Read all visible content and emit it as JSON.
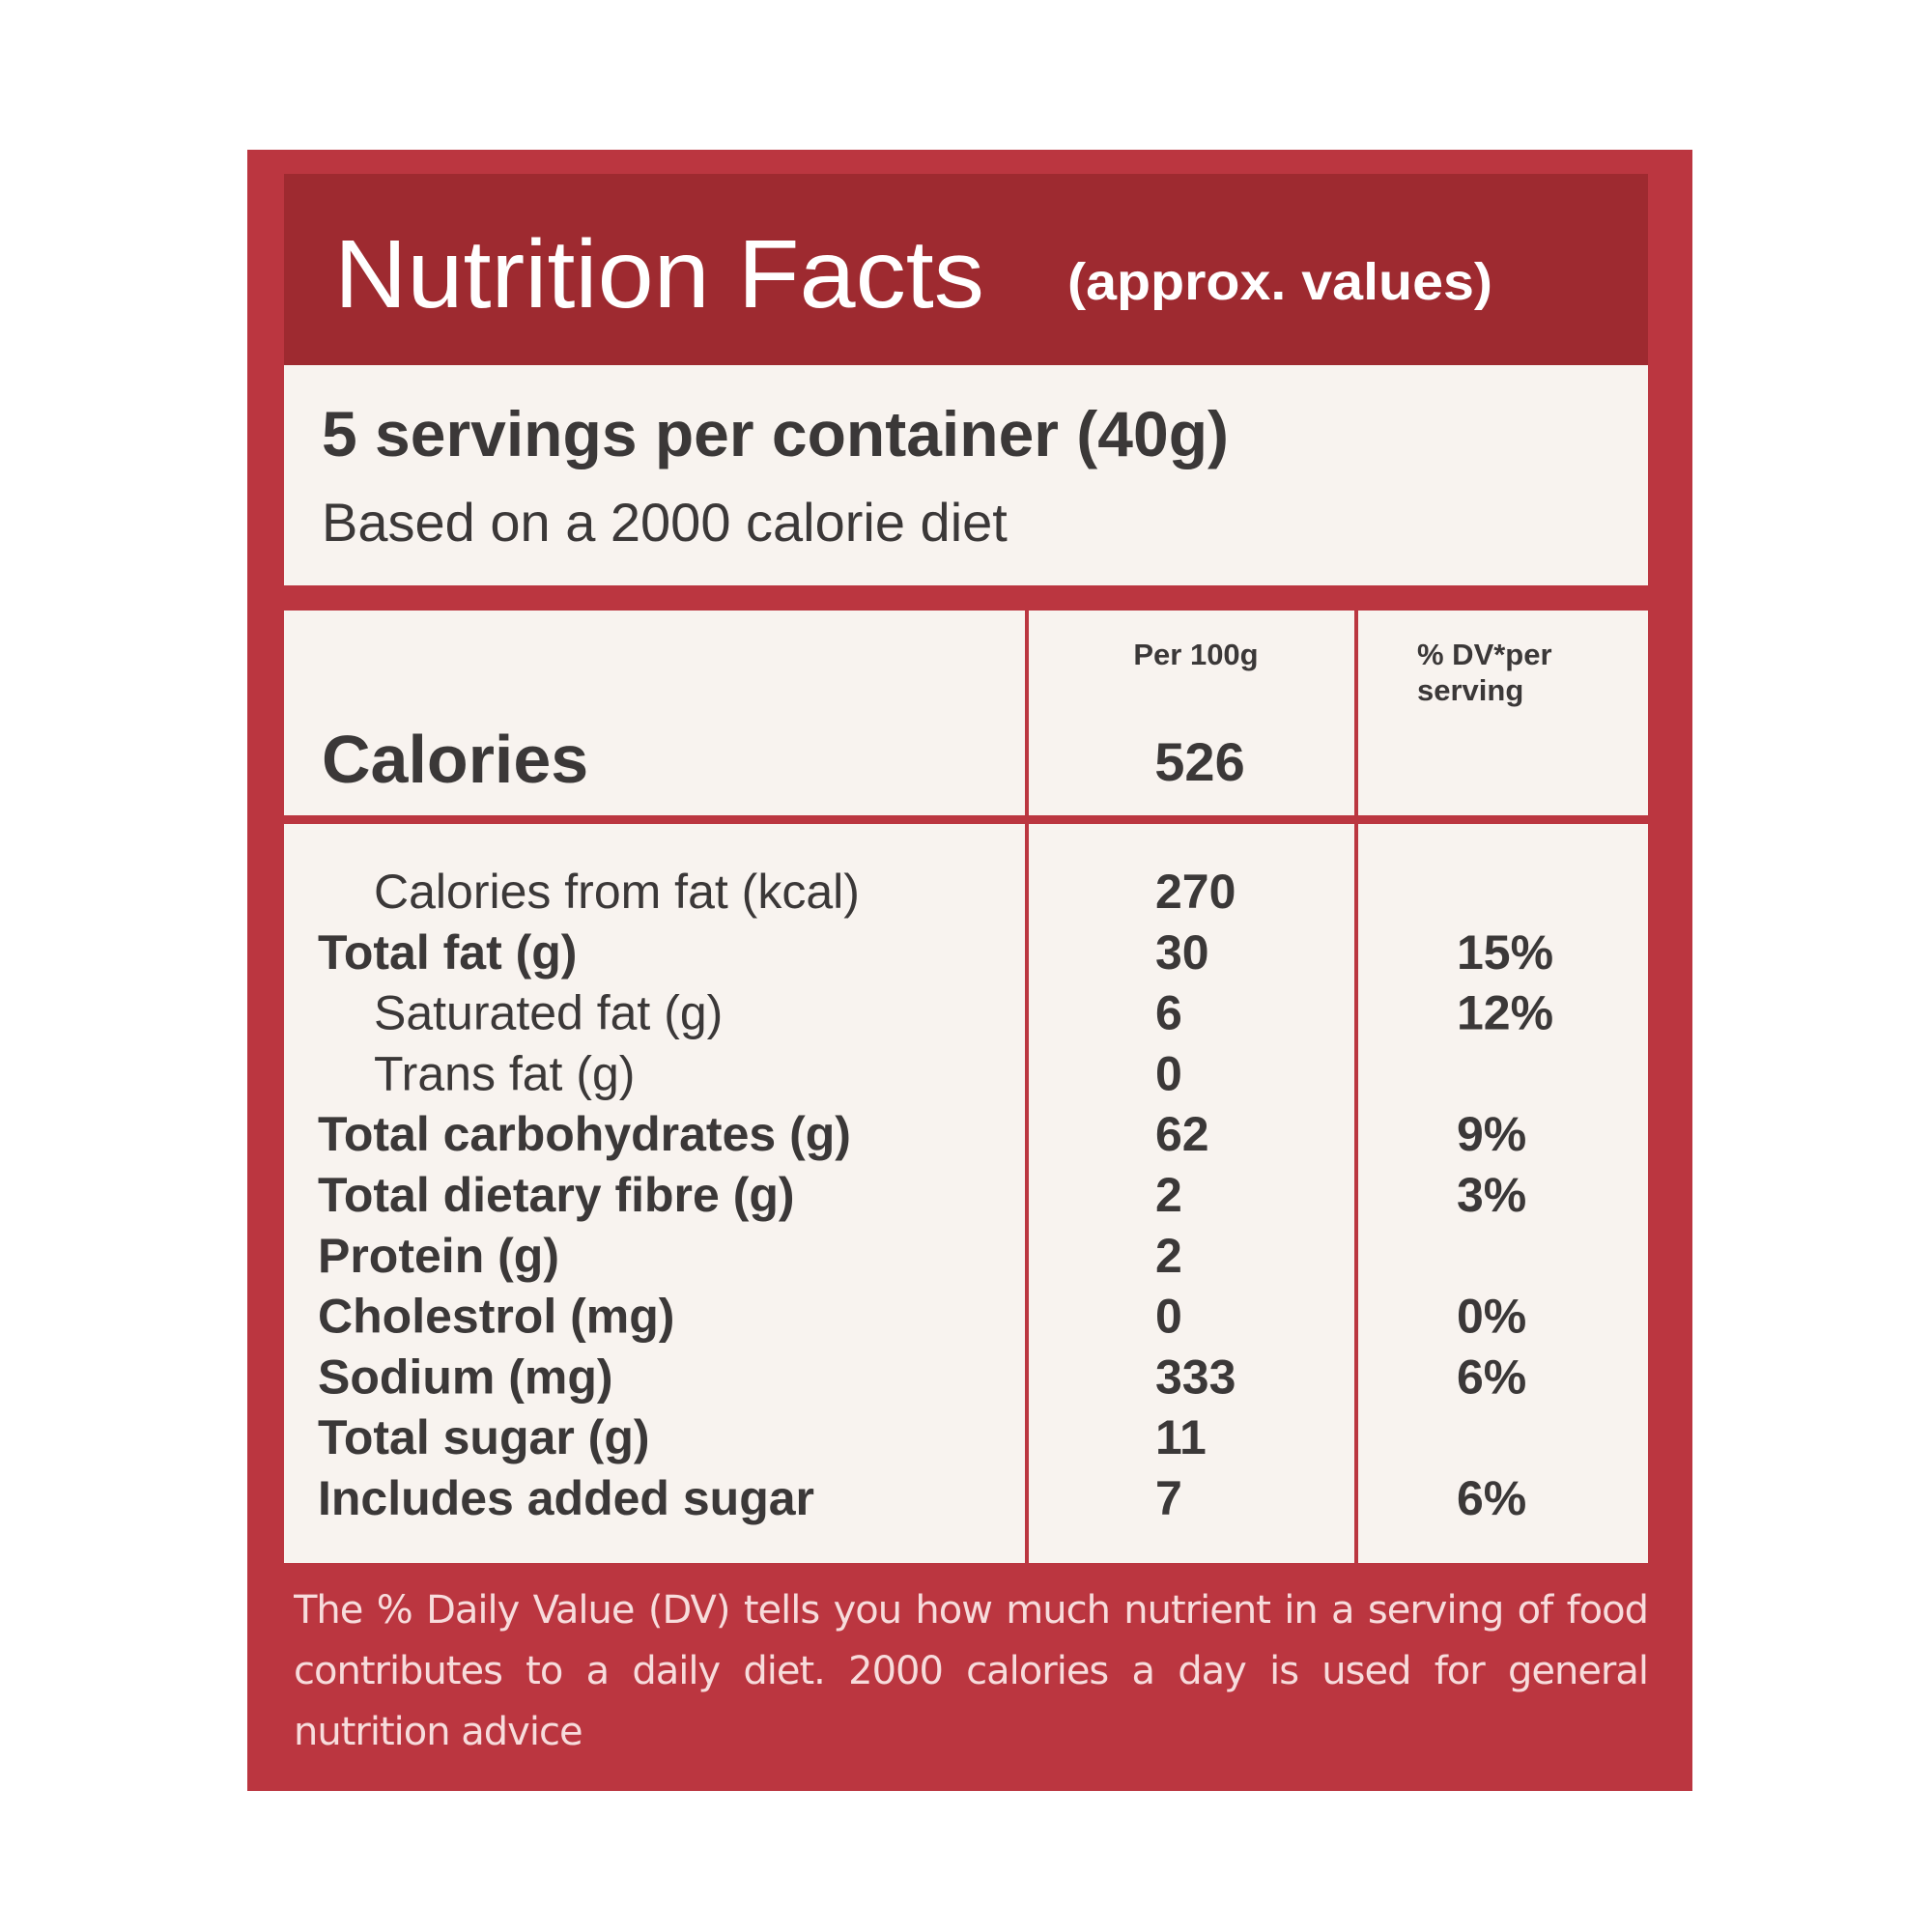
{
  "header": {
    "title": "Nutrition Facts",
    "subtitle": "(approx. values)"
  },
  "servings": {
    "line1": "5 servings per container (40g)",
    "line2": "Based on a 2000 calorie diet"
  },
  "table": {
    "col_per": "Per 100g",
    "col_dv": [
      "% DV*per",
      "serving"
    ],
    "calories": {
      "label": "Calories",
      "per_100g": 526
    },
    "rows": [
      {
        "label": "Calories from fat (kcal)",
        "per_100g": 270,
        "sub": true
      },
      {
        "label": "Total fat (g)",
        "per_100g": 30,
        "dv": "15%"
      },
      {
        "label": "Saturated fat (g)",
        "per_100g": 6,
        "dv": "12%",
        "sub": true
      },
      {
        "label": "Trans fat (g)",
        "per_100g": 0,
        "sub": true
      },
      {
        "label": "Total carbohydrates (g)",
        "per_100g": 62,
        "dv": "9%"
      },
      {
        "label": "Total dietary fibre (g)",
        "per_100g": 2,
        "dv": "3%"
      },
      {
        "label": "Protein (g)",
        "per_100g": 2
      },
      {
        "label": "Cholestrol (mg)",
        "per_100g": 0,
        "dv": "0%"
      },
      {
        "label": "Sodium (mg)",
        "per_100g": 333,
        "dv": "6%"
      },
      {
        "label": "Total sugar (g)",
        "per_100g": 11
      },
      {
        "label": "Includes added sugar",
        "per_100g": 7,
        "dv": "6%"
      }
    ]
  },
  "footer": "The % Daily Value (DV) tells you how much nutrient in a serving of food contributes to a daily diet. 2000 calories a day is used for general nutrition advice"
}
